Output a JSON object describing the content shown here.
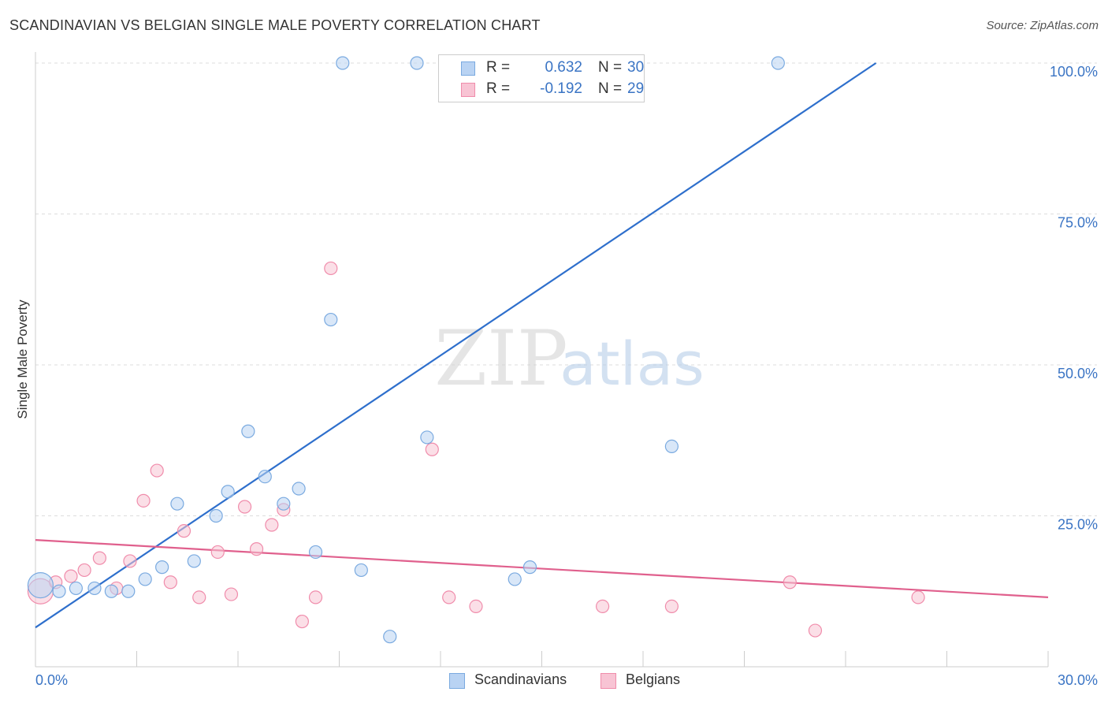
{
  "header": {
    "title": "SCANDINAVIAN VS BELGIAN SINGLE MALE POVERTY CORRELATION CHART",
    "source": "Source: ZipAtlas.com"
  },
  "watermark": {
    "zip": "ZIP",
    "atlas": "atlas"
  },
  "legend": {
    "rows": [
      {
        "r_label": "R =",
        "r_value": "0.632",
        "n_label": "N =",
        "n_value": "30"
      },
      {
        "r_label": "R =",
        "r_value": "-0.192",
        "n_label": "N =",
        "n_value": "29"
      }
    ]
  },
  "bottom_legend": [
    {
      "label": "Scandinavians"
    },
    {
      "label": "Belgians"
    }
  ],
  "colors": {
    "scand_fill": "#b9d3f3",
    "scand_stroke": "#7aaae0",
    "scand_line": "#2e6fcc",
    "belg_fill": "#f8c4d4",
    "belg_stroke": "#f08cab",
    "belg_line": "#e0608d",
    "axis_text": "#3a74c4",
    "grid": "#dddddd"
  },
  "chart_data": {
    "type": "scatter",
    "title": "SCANDINAVIAN VS BELGIAN SINGLE MALE POVERTY CORRELATION CHART",
    "xlabel": "",
    "ylabel": "Single Male Poverty",
    "xlim": [
      0,
      30
    ],
    "ylim": [
      0,
      100
    ],
    "x_tick_labels": [
      "0.0%",
      "30.0%"
    ],
    "y_ticks": [
      25,
      50,
      75,
      100
    ],
    "y_tick_labels": [
      "25.0%",
      "50.0%",
      "75.0%",
      "100.0%"
    ],
    "series": [
      {
        "name": "Scandinavians",
        "r": 0.632,
        "n": 30,
        "trend": {
          "x": [
            0,
            24.9
          ],
          "y": [
            6.5,
            100
          ]
        },
        "points": [
          {
            "x": 0.15,
            "y": 13.5,
            "size": "large"
          },
          {
            "x": 0.7,
            "y": 12.5
          },
          {
            "x": 1.2,
            "y": 13.0
          },
          {
            "x": 1.75,
            "y": 13.0
          },
          {
            "x": 2.25,
            "y": 12.5
          },
          {
            "x": 2.75,
            "y": 12.5
          },
          {
            "x": 3.25,
            "y": 14.5
          },
          {
            "x": 3.75,
            "y": 16.5
          },
          {
            "x": 4.2,
            "y": 27.0
          },
          {
            "x": 4.7,
            "y": 17.5
          },
          {
            "x": 5.35,
            "y": 25.0
          },
          {
            "x": 5.7,
            "y": 29.0
          },
          {
            "x": 6.3,
            "y": 39.0
          },
          {
            "x": 6.8,
            "y": 31.5
          },
          {
            "x": 7.35,
            "y": 27.0
          },
          {
            "x": 7.8,
            "y": 29.5
          },
          {
            "x": 8.3,
            "y": 19.0
          },
          {
            "x": 8.75,
            "y": 57.5
          },
          {
            "x": 9.65,
            "y": 16.0
          },
          {
            "x": 10.5,
            "y": 5.0
          },
          {
            "x": 11.6,
            "y": 38.0
          },
          {
            "x": 14.2,
            "y": 14.5
          },
          {
            "x": 14.65,
            "y": 16.5
          },
          {
            "x": 18.85,
            "y": 36.5
          },
          {
            "x": 9.1,
            "y": 100
          },
          {
            "x": 11.3,
            "y": 100
          },
          {
            "x": 12.3,
            "y": 100
          },
          {
            "x": 15.6,
            "y": 100
          },
          {
            "x": 16.9,
            "y": 100
          },
          {
            "x": 22.0,
            "y": 100
          }
        ]
      },
      {
        "name": "Belgians",
        "r": -0.192,
        "n": 29,
        "trend": {
          "x": [
            0,
            30
          ],
          "y": [
            21.0,
            11.5
          ]
        },
        "points": [
          {
            "x": 0.15,
            "y": 12.5,
            "size": "large"
          },
          {
            "x": 0.6,
            "y": 14.0
          },
          {
            "x": 1.05,
            "y": 15.0
          },
          {
            "x": 1.45,
            "y": 16.0
          },
          {
            "x": 1.9,
            "y": 18.0
          },
          {
            "x": 2.4,
            "y": 13.0
          },
          {
            "x": 2.8,
            "y": 17.5
          },
          {
            "x": 3.2,
            "y": 27.5
          },
          {
            "x": 3.6,
            "y": 32.5
          },
          {
            "x": 4.0,
            "y": 14.0
          },
          {
            "x": 4.4,
            "y": 22.5
          },
          {
            "x": 4.85,
            "y": 11.5
          },
          {
            "x": 5.4,
            "y": 19.0
          },
          {
            "x": 5.8,
            "y": 12.0
          },
          {
            "x": 6.2,
            "y": 26.5
          },
          {
            "x": 6.55,
            "y": 19.5
          },
          {
            "x": 7.0,
            "y": 23.5
          },
          {
            "x": 7.35,
            "y": 26.0
          },
          {
            "x": 7.9,
            "y": 7.5
          },
          {
            "x": 8.3,
            "y": 11.5
          },
          {
            "x": 8.75,
            "y": 66.0
          },
          {
            "x": 11.75,
            "y": 36.0
          },
          {
            "x": 12.25,
            "y": 11.5
          },
          {
            "x": 13.05,
            "y": 10.0
          },
          {
            "x": 16.8,
            "y": 10.0
          },
          {
            "x": 18.85,
            "y": 10.0
          },
          {
            "x": 22.35,
            "y": 14.0
          },
          {
            "x": 23.1,
            "y": 6.0
          },
          {
            "x": 26.15,
            "y": 11.5
          }
        ]
      }
    ]
  }
}
